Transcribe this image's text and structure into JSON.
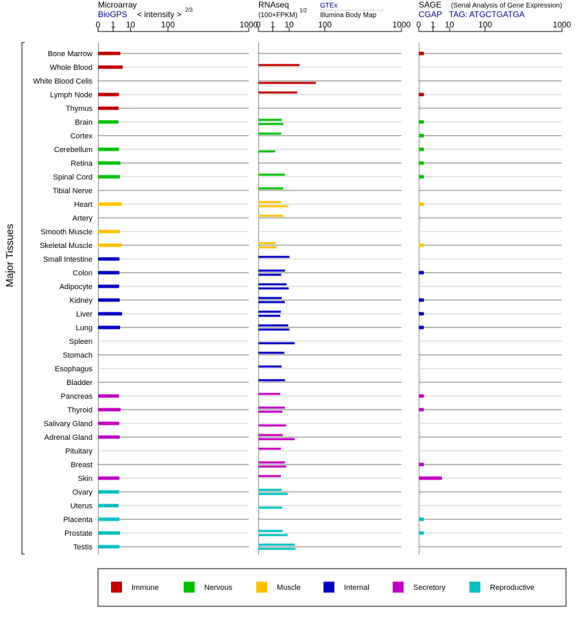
{
  "side_label": "Major Tissues",
  "panels": {
    "microarray": {
      "title": "Microarray",
      "source": "BioGPS",
      "scale_label": "< intensity >",
      "scale_exp": "2/3"
    },
    "rnaseq": {
      "title": "RNAseq",
      "unit": "(100×FPKM)",
      "unit_exp": "1/2",
      "source_a": "GTEx",
      "source_b": "Illumina Body Map"
    },
    "sage": {
      "title": "SAGE",
      "subtitle": "(Serial Analysis of Gene Expression)",
      "source": "CGAP",
      "tag": "TAG: ATGCTGATGA"
    }
  },
  "axis_ticks": [
    "0",
    "1",
    "10",
    "100",
    "1000"
  ],
  "legend": [
    {
      "label": "Immune",
      "color": "#c00000"
    },
    {
      "label": "Nervous",
      "color": "#00c000"
    },
    {
      "label": "Muscle",
      "color": "#ffc000"
    },
    {
      "label": "Internal",
      "color": "#0000c0"
    },
    {
      "label": "Secretory",
      "color": "#c000c0"
    },
    {
      "label": "Reproductive",
      "color": "#00c0c0"
    }
  ],
  "chart_data": {
    "type": "bar",
    "axis": "power scale 0–1000 (ticks 0, 1, 10, 100, 1000)",
    "categories": [
      "Bone Marrow",
      "Whole Blood",
      "White Blood Cells",
      "Lymph Node",
      "Thymus",
      "Brain",
      "Cortex",
      "Cerebellum",
      "Retina",
      "Spinal Cord",
      "Tibial Nerve",
      "Heart",
      "Artery",
      "Smooth Muscle",
      "Skeletal Muscle",
      "Small Intestine",
      "Colon",
      "Adipocyte",
      "Kidney",
      "Liver",
      "Lung",
      "Spleen",
      "Stomach",
      "Esophagus",
      "Bladder",
      "Pancreas",
      "Thyroid",
      "Salivary Gland",
      "Adrenal Gland",
      "Pituitary",
      "Breast",
      "Skin",
      "Ovary",
      "Uterus",
      "Placenta",
      "Prostate",
      "Testis"
    ],
    "groups": [
      "Immune",
      "Immune",
      "Immune",
      "Immune",
      "Immune",
      "Nervous",
      "Nervous",
      "Nervous",
      "Nervous",
      "Nervous",
      "Nervous",
      "Muscle",
      "Muscle",
      "Muscle",
      "Muscle",
      "Internal",
      "Internal",
      "Internal",
      "Internal",
      "Internal",
      "Internal",
      "Internal",
      "Internal",
      "Internal",
      "Internal",
      "Secretory",
      "Secretory",
      "Secretory",
      "Secretory",
      "Secretory",
      "Secretory",
      "Secretory",
      "Reproductive",
      "Reproductive",
      "Reproductive",
      "Reproductive",
      "Reproductive"
    ],
    "microarray": [
      3.3,
      4.5,
      null,
      2.7,
      2.6,
      2.5,
      null,
      2.7,
      3.3,
      3.1,
      null,
      4.1,
      null,
      3.1,
      4.0,
      2.9,
      2.9,
      2.8,
      3.0,
      4.1,
      3.2,
      null,
      null,
      null,
      null,
      2.7,
      3.4,
      2.8,
      3.0,
      null,
      null,
      2.9,
      2.7,
      2.6,
      2.9,
      3.2,
      2.9
    ],
    "rnaseq_gtex": [
      null,
      24,
      null,
      20,
      null,
      4.4,
      4.1,
      null,
      null,
      6.4,
      5.3,
      3.9,
      5.3,
      null,
      1.7,
      10.2,
      6.4,
      7.7,
      4.4,
      3.9,
      9.1,
      null,
      6.0,
      4.3,
      6.4,
      3.6,
      6.4,
      null,
      4.9,
      3.9,
      6.4,
      3.9,
      4.4,
      null,
      null,
      5.0,
      16.4
    ],
    "rnaseq_ibm": [
      null,
      null,
      65,
      null,
      null,
      5.3,
      null,
      1.6,
      null,
      null,
      null,
      9.1,
      null,
      null,
      2.0,
      null,
      4.1,
      9.6,
      6.4,
      3.6,
      10.2,
      16.4,
      null,
      null,
      null,
      null,
      4.7,
      7.2,
      16.4,
      null,
      7.2,
      null,
      8.6,
      4.7,
      null,
      8.6,
      17.5
    ],
    "sage": [
      0.05,
      null,
      null,
      0.05,
      null,
      0.05,
      0.05,
      0.05,
      0.05,
      0.05,
      null,
      0.05,
      null,
      null,
      0.05,
      null,
      0.05,
      null,
      0.05,
      0.05,
      0.05,
      null,
      null,
      null,
      null,
      0.05,
      0.05,
      null,
      null,
      null,
      0.05,
      4.3,
      null,
      null,
      0.05,
      0.05,
      null
    ]
  }
}
